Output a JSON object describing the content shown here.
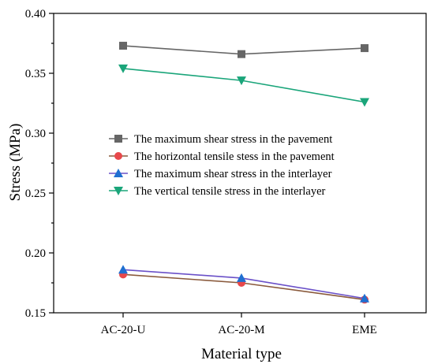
{
  "chart_data": {
    "type": "line",
    "title": "",
    "xlabel": "Material type",
    "ylabel": "Stress (MPa)",
    "categories": [
      "AC-20-U",
      "AC-20-M",
      "EME"
    ],
    "ylim": [
      0.15,
      0.4
    ],
    "yticks": [
      0.15,
      0.2,
      0.25,
      0.3,
      0.35,
      0.4
    ],
    "ytick_labels": [
      "0.15",
      "0.20",
      "0.25",
      "0.30",
      "0.35",
      "0.40"
    ],
    "grid": false,
    "legend_position": "center",
    "series": [
      {
        "name": "The maximum shear stress in the pavement",
        "values": [
          0.373,
          0.366,
          0.371
        ],
        "color": "#666666",
        "marker": "square"
      },
      {
        "name": "The horizontal tensile stess in the pavement",
        "values": [
          0.182,
          0.175,
          0.161
        ],
        "color": "#e8484b",
        "line_color": "#8a5a3c",
        "marker": "circle"
      },
      {
        "name": "The maximum shear stress in the interlayer",
        "values": [
          0.186,
          0.179,
          0.162
        ],
        "color": "#1f6fd1",
        "line_color": "#6a50c8",
        "marker": "triangle-up"
      },
      {
        "name": "The vertical tensile stress in the interlayer",
        "values": [
          0.354,
          0.344,
          0.326
        ],
        "color": "#1aa57a",
        "marker": "triangle-down"
      }
    ]
  }
}
